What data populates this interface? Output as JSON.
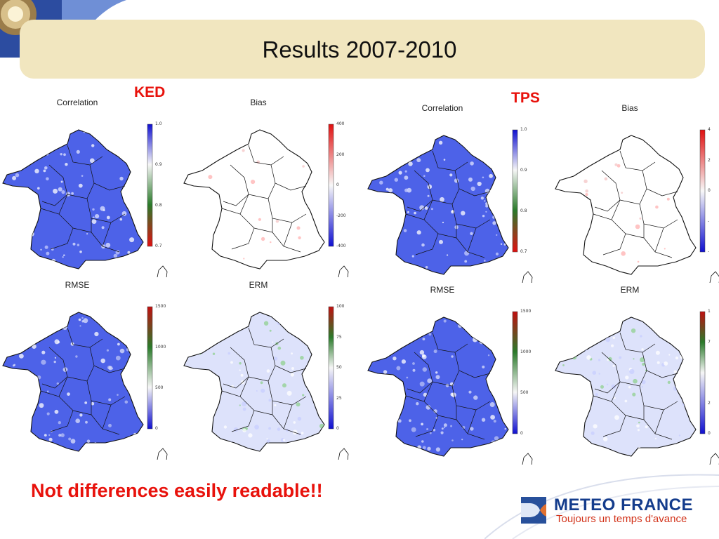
{
  "title": "Results 2007-2010",
  "sections": [
    {
      "id": "ked",
      "label": "KED"
    },
    {
      "id": "tps",
      "label": "TPS"
    }
  ],
  "panels": [
    {
      "group": "ked",
      "metric": "Correlation",
      "palette": "correlation",
      "scale": [
        "1.0",
        "0.9",
        "0.8",
        "0.7"
      ]
    },
    {
      "group": "ked",
      "metric": "Bias",
      "palette": "bias",
      "scale": [
        "400",
        "200",
        "0",
        "-200",
        "-400"
      ]
    },
    {
      "group": "ked",
      "metric": "RMSE",
      "palette": "rmse",
      "scale": [
        "1500",
        "1000",
        "500",
        "0"
      ]
    },
    {
      "group": "ked",
      "metric": "ERM",
      "palette": "erm",
      "scale": [
        "100",
        "75",
        "50",
        "25",
        "0"
      ]
    },
    {
      "group": "tps",
      "metric": "Correlation",
      "palette": "correlation",
      "scale": [
        "1.0",
        "0.9",
        "0.8",
        "0.7"
      ]
    },
    {
      "group": "tps",
      "metric": "Bias",
      "palette": "bias",
      "scale": [
        "4",
        "2",
        "0",
        "-",
        "-"
      ]
    },
    {
      "group": "tps",
      "metric": "RMSE",
      "palette": "rmse",
      "scale": [
        "1500",
        "1000",
        "500",
        "0"
      ]
    },
    {
      "group": "tps",
      "metric": "ERM",
      "palette": "erm",
      "scale": [
        "1",
        "7",
        "",
        "2",
        "0"
      ]
    }
  ],
  "footnote": "Not differences easily readable!!",
  "logo": {
    "name": "METEO FRANCE",
    "tagline": "Toujours un temps d'avance"
  },
  "colors": {
    "title_bar": "#f1e6bf",
    "highlight_red": "#e8120c",
    "map_blue": "#4d62e8",
    "map_light": "#dde2fb",
    "logo_blue": "#143c8c",
    "logo_orange": "#d23219"
  }
}
